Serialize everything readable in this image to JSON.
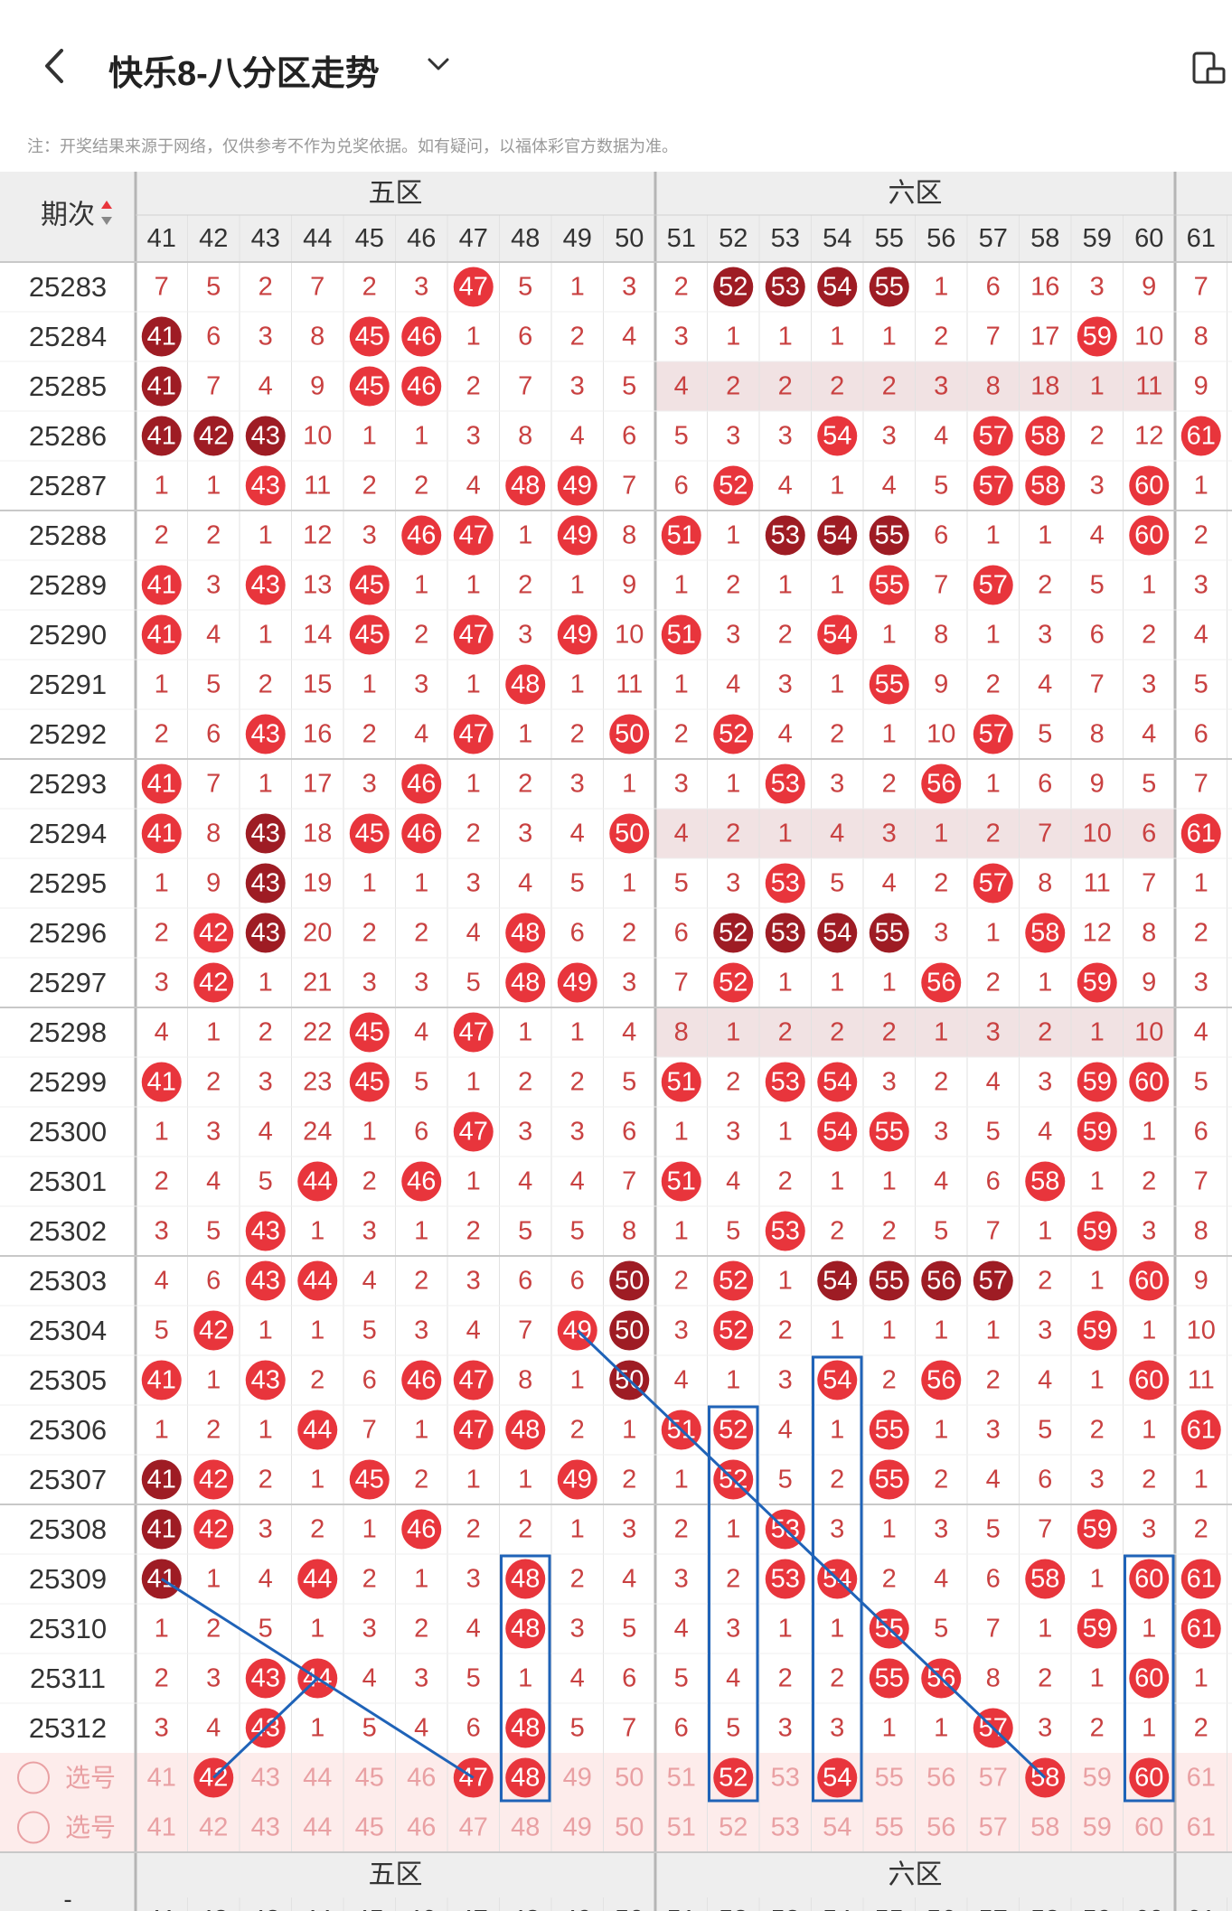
{
  "header": {
    "title": "快乐8-八分区走势",
    "back_icon": "back-arrow-icon",
    "dropdown_icon": "chevron-down-icon",
    "right_icon": "device-icon"
  },
  "note": "注：开奖结果来源于网络，仅供参考不作为兑奖依据。如有疑问，以福体彩官方数据为准。",
  "table": {
    "period_header": "期次",
    "sort_icon": "sort-arrows-icon",
    "zones": [
      {
        "name": "五区"
      },
      {
        "name": "六区"
      }
    ],
    "columns": [
      "41",
      "42",
      "43",
      "44",
      "45",
      "46",
      "47",
      "48",
      "49",
      "50",
      "51",
      "52",
      "53",
      "54",
      "55",
      "56",
      "57",
      "58",
      "59",
      "60",
      "61"
    ],
    "rows": [
      {
        "period": "25283",
        "cells": [
          "7",
          "5",
          "2",
          "7",
          "2",
          "3",
          "47",
          "5",
          "1",
          "3",
          "2",
          "52",
          "53",
          "54",
          "55",
          "1",
          "6",
          "16",
          "3",
          "9",
          "7"
        ],
        "hits": [
          6,
          11,
          12,
          13,
          14
        ],
        "dark": [
          11,
          12,
          13,
          14
        ],
        "shaded": false
      },
      {
        "period": "25284",
        "cells": [
          "41",
          "6",
          "3",
          "8",
          "45",
          "46",
          "1",
          "6",
          "2",
          "4",
          "3",
          "1",
          "1",
          "1",
          "1",
          "2",
          "7",
          "17",
          "59",
          "10",
          "8"
        ],
        "hits": [
          0,
          4,
          5,
          18
        ],
        "dark": [
          0
        ],
        "shaded": false
      },
      {
        "period": "25285",
        "cells": [
          "41",
          "7",
          "4",
          "9",
          "45",
          "46",
          "2",
          "7",
          "3",
          "5",
          "4",
          "2",
          "2",
          "2",
          "2",
          "3",
          "8",
          "18",
          "1",
          "11",
          "9"
        ],
        "hits": [
          0,
          4,
          5
        ],
        "dark": [
          0
        ],
        "shaded": true
      },
      {
        "period": "25286",
        "cells": [
          "41",
          "42",
          "43",
          "10",
          "1",
          "1",
          "3",
          "8",
          "4",
          "6",
          "5",
          "3",
          "3",
          "54",
          "3",
          "4",
          "57",
          "58",
          "2",
          "12",
          "61"
        ],
        "hits": [
          0,
          1,
          2,
          13,
          16,
          17,
          20
        ],
        "dark": [
          0,
          1,
          2
        ],
        "shaded": false
      },
      {
        "period": "25287",
        "cells": [
          "1",
          "1",
          "43",
          "11",
          "2",
          "2",
          "4",
          "48",
          "49",
          "7",
          "6",
          "52",
          "4",
          "1",
          "4",
          "5",
          "57",
          "58",
          "3",
          "60",
          "1"
        ],
        "hits": [
          2,
          7,
          8,
          11,
          16,
          17,
          19
        ],
        "dark": [],
        "shaded": false
      },
      {
        "period": "25288",
        "cells": [
          "2",
          "2",
          "1",
          "12",
          "3",
          "46",
          "47",
          "1",
          "49",
          "8",
          "51",
          "1",
          "53",
          "54",
          "55",
          "6",
          "1",
          "1",
          "4",
          "60",
          "2"
        ],
        "hits": [
          5,
          6,
          8,
          10,
          12,
          13,
          14,
          19
        ],
        "dark": [
          12,
          13,
          14
        ],
        "shaded": false
      },
      {
        "period": "25289",
        "cells": [
          "41",
          "3",
          "43",
          "13",
          "45",
          "1",
          "1",
          "2",
          "1",
          "9",
          "1",
          "2",
          "1",
          "1",
          "55",
          "7",
          "57",
          "2",
          "5",
          "1",
          "3"
        ],
        "hits": [
          0,
          2,
          4,
          14,
          16
        ],
        "dark": [],
        "shaded": false
      },
      {
        "period": "25290",
        "cells": [
          "41",
          "4",
          "1",
          "14",
          "45",
          "2",
          "47",
          "3",
          "49",
          "10",
          "51",
          "3",
          "2",
          "54",
          "1",
          "8",
          "1",
          "3",
          "6",
          "2",
          "4"
        ],
        "hits": [
          0,
          4,
          6,
          8,
          10,
          13
        ],
        "dark": [],
        "shaded": false
      },
      {
        "period": "25291",
        "cells": [
          "1",
          "5",
          "2",
          "15",
          "1",
          "3",
          "1",
          "48",
          "1",
          "11",
          "1",
          "4",
          "3",
          "1",
          "55",
          "9",
          "2",
          "4",
          "7",
          "3",
          "5"
        ],
        "hits": [
          7,
          14
        ],
        "dark": [],
        "shaded": false
      },
      {
        "period": "25292",
        "cells": [
          "2",
          "6",
          "43",
          "16",
          "2",
          "4",
          "47",
          "1",
          "2",
          "50",
          "2",
          "52",
          "4",
          "2",
          "1",
          "10",
          "57",
          "5",
          "8",
          "4",
          "6"
        ],
        "hits": [
          2,
          6,
          9,
          11,
          16
        ],
        "dark": [],
        "shaded": false
      },
      {
        "period": "25293",
        "cells": [
          "41",
          "7",
          "1",
          "17",
          "3",
          "46",
          "1",
          "2",
          "3",
          "1",
          "3",
          "1",
          "53",
          "3",
          "2",
          "56",
          "1",
          "6",
          "9",
          "5",
          "7"
        ],
        "hits": [
          0,
          5,
          12,
          15
        ],
        "dark": [],
        "shaded": false
      },
      {
        "period": "25294",
        "cells": [
          "41",
          "8",
          "43",
          "18",
          "45",
          "46",
          "2",
          "3",
          "4",
          "50",
          "4",
          "2",
          "1",
          "4",
          "3",
          "1",
          "2",
          "7",
          "10",
          "6",
          "61"
        ],
        "hits": [
          0,
          2,
          4,
          5,
          9,
          20
        ],
        "dark": [
          2
        ],
        "shaded": true
      },
      {
        "period": "25295",
        "cells": [
          "1",
          "9",
          "43",
          "19",
          "1",
          "1",
          "3",
          "4",
          "5",
          "1",
          "5",
          "3",
          "53",
          "5",
          "4",
          "2",
          "57",
          "8",
          "11",
          "7",
          "1"
        ],
        "hits": [
          2,
          12,
          16
        ],
        "dark": [
          2
        ],
        "shaded": false
      },
      {
        "period": "25296",
        "cells": [
          "2",
          "42",
          "43",
          "20",
          "2",
          "2",
          "4",
          "48",
          "6",
          "2",
          "6",
          "52",
          "53",
          "54",
          "55",
          "3",
          "1",
          "58",
          "12",
          "8",
          "2"
        ],
        "hits": [
          1,
          2,
          7,
          11,
          12,
          13,
          14,
          17
        ],
        "dark": [
          2,
          11,
          12,
          13,
          14
        ],
        "shaded": false
      },
      {
        "period": "25297",
        "cells": [
          "3",
          "42",
          "1",
          "21",
          "3",
          "3",
          "5",
          "48",
          "49",
          "3",
          "7",
          "52",
          "1",
          "1",
          "1",
          "56",
          "2",
          "1",
          "59",
          "9",
          "3"
        ],
        "hits": [
          1,
          7,
          8,
          11,
          15,
          18
        ],
        "dark": [],
        "shaded": false
      },
      {
        "period": "25298",
        "cells": [
          "4",
          "1",
          "2",
          "22",
          "45",
          "4",
          "47",
          "1",
          "1",
          "4",
          "8",
          "1",
          "2",
          "2",
          "2",
          "1",
          "3",
          "2",
          "1",
          "10",
          "4"
        ],
        "hits": [
          4,
          6
        ],
        "dark": [],
        "shaded": true
      },
      {
        "period": "25299",
        "cells": [
          "41",
          "2",
          "3",
          "23",
          "45",
          "5",
          "1",
          "2",
          "2",
          "5",
          "51",
          "2",
          "53",
          "54",
          "3",
          "2",
          "4",
          "3",
          "59",
          "60",
          "5"
        ],
        "hits": [
          0,
          4,
          10,
          12,
          13,
          18,
          19
        ],
        "dark": [],
        "shaded": false
      },
      {
        "period": "25300",
        "cells": [
          "1",
          "3",
          "4",
          "24",
          "1",
          "6",
          "47",
          "3",
          "3",
          "6",
          "1",
          "3",
          "1",
          "54",
          "55",
          "3",
          "5",
          "4",
          "59",
          "1",
          "6"
        ],
        "hits": [
          6,
          13,
          14,
          18
        ],
        "dark": [],
        "shaded": false
      },
      {
        "period": "25301",
        "cells": [
          "2",
          "4",
          "5",
          "44",
          "2",
          "46",
          "1",
          "4",
          "4",
          "7",
          "51",
          "4",
          "2",
          "1",
          "1",
          "4",
          "6",
          "58",
          "1",
          "2",
          "7"
        ],
        "hits": [
          3,
          5,
          10,
          17
        ],
        "dark": [],
        "shaded": false
      },
      {
        "period": "25302",
        "cells": [
          "3",
          "5",
          "43",
          "1",
          "3",
          "1",
          "2",
          "5",
          "5",
          "8",
          "1",
          "5",
          "53",
          "2",
          "2",
          "5",
          "7",
          "1",
          "59",
          "3",
          "8"
        ],
        "hits": [
          2,
          12,
          18
        ],
        "dark": [],
        "shaded": false
      },
      {
        "period": "25303",
        "cells": [
          "4",
          "6",
          "43",
          "44",
          "4",
          "2",
          "3",
          "6",
          "6",
          "50",
          "2",
          "52",
          "1",
          "54",
          "55",
          "56",
          "57",
          "2",
          "1",
          "60",
          "9"
        ],
        "hits": [
          2,
          3,
          9,
          11,
          13,
          14,
          15,
          16,
          19
        ],
        "dark": [
          9,
          13,
          14,
          15,
          16
        ],
        "shaded": false
      },
      {
        "period": "25304",
        "cells": [
          "5",
          "42",
          "1",
          "1",
          "5",
          "3",
          "4",
          "7",
          "49",
          "50",
          "3",
          "52",
          "2",
          "1",
          "1",
          "1",
          "1",
          "3",
          "59",
          "1",
          "10"
        ],
        "hits": [
          1,
          8,
          9,
          11,
          18
        ],
        "dark": [
          9
        ],
        "shaded": false
      },
      {
        "period": "25305",
        "cells": [
          "41",
          "1",
          "43",
          "2",
          "6",
          "46",
          "47",
          "8",
          "1",
          "50",
          "4",
          "1",
          "3",
          "54",
          "2",
          "56",
          "2",
          "4",
          "1",
          "60",
          "11"
        ],
        "hits": [
          0,
          2,
          5,
          6,
          9,
          13,
          15,
          19
        ],
        "dark": [
          9
        ],
        "shaded": false
      },
      {
        "period": "25306",
        "cells": [
          "1",
          "2",
          "1",
          "44",
          "7",
          "1",
          "47",
          "48",
          "2",
          "1",
          "51",
          "52",
          "4",
          "1",
          "55",
          "1",
          "3",
          "5",
          "2",
          "1",
          "61"
        ],
        "hits": [
          3,
          6,
          7,
          10,
          11,
          14,
          20
        ],
        "dark": [],
        "shaded": false
      },
      {
        "period": "25307",
        "cells": [
          "41",
          "42",
          "2",
          "1",
          "45",
          "2",
          "1",
          "1",
          "49",
          "2",
          "1",
          "52",
          "5",
          "2",
          "55",
          "2",
          "4",
          "6",
          "3",
          "2",
          "1"
        ],
        "hits": [
          0,
          1,
          4,
          8,
          11,
          14
        ],
        "dark": [
          0
        ],
        "shaded": false
      },
      {
        "period": "25308",
        "cells": [
          "41",
          "42",
          "3",
          "2",
          "1",
          "46",
          "2",
          "2",
          "1",
          "3",
          "2",
          "1",
          "53",
          "3",
          "1",
          "3",
          "5",
          "7",
          "59",
          "3",
          "2"
        ],
        "hits": [
          0,
          1,
          5,
          12,
          18
        ],
        "dark": [
          0
        ],
        "shaded": false
      },
      {
        "period": "25309",
        "cells": [
          "41",
          "1",
          "4",
          "44",
          "2",
          "1",
          "3",
          "48",
          "2",
          "4",
          "3",
          "2",
          "53",
          "54",
          "2",
          "4",
          "6",
          "58",
          "1",
          "60",
          "61"
        ],
        "hits": [
          0,
          3,
          7,
          12,
          13,
          17,
          19,
          20
        ],
        "dark": [
          0
        ],
        "shaded": false
      },
      {
        "period": "25310",
        "cells": [
          "1",
          "2",
          "5",
          "1",
          "3",
          "2",
          "4",
          "48",
          "3",
          "5",
          "4",
          "3",
          "1",
          "1",
          "55",
          "5",
          "7",
          "1",
          "59",
          "1",
          "61"
        ],
        "hits": [
          7,
          14,
          18,
          20
        ],
        "dark": [],
        "shaded": false
      },
      {
        "period": "25311",
        "cells": [
          "2",
          "3",
          "43",
          "44",
          "4",
          "3",
          "5",
          "1",
          "4",
          "6",
          "5",
          "4",
          "2",
          "2",
          "55",
          "56",
          "8",
          "2",
          "1",
          "60",
          "1"
        ],
        "hits": [
          2,
          3,
          14,
          15,
          19
        ],
        "dark": [],
        "shaded": false
      },
      {
        "period": "25312",
        "cells": [
          "3",
          "4",
          "43",
          "1",
          "5",
          "4",
          "6",
          "48",
          "5",
          "7",
          "6",
          "5",
          "3",
          "3",
          "1",
          "1",
          "57",
          "3",
          "2",
          "1",
          "2"
        ],
        "hits": [
          2,
          7,
          16
        ],
        "dark": [],
        "shaded": false
      }
    ],
    "select_rows": [
      {
        "label": "选号",
        "cells": [
          "41",
          "42",
          "43",
          "44",
          "45",
          "46",
          "47",
          "48",
          "49",
          "50",
          "51",
          "52",
          "53",
          "54",
          "55",
          "56",
          "57",
          "58",
          "59",
          "60",
          "61"
        ],
        "hits": [
          1,
          6,
          7,
          11,
          13,
          17,
          19
        ]
      },
      {
        "label": "选号",
        "cells": [
          "41",
          "42",
          "43",
          "44",
          "45",
          "46",
          "47",
          "48",
          "49",
          "50",
          "51",
          "52",
          "53",
          "54",
          "55",
          "56",
          "57",
          "58",
          "59",
          "60",
          "61"
        ],
        "hits": []
      }
    ],
    "footer_period": "-"
  },
  "colors": {
    "hit": "#e8353c",
    "dark": "#9e1c24",
    "header_bg": "#eeeeee",
    "select_bg": "#fdeceb",
    "shade_bg": "#f1e2e3",
    "line": "#1f63b8",
    "text": "#c94141"
  }
}
